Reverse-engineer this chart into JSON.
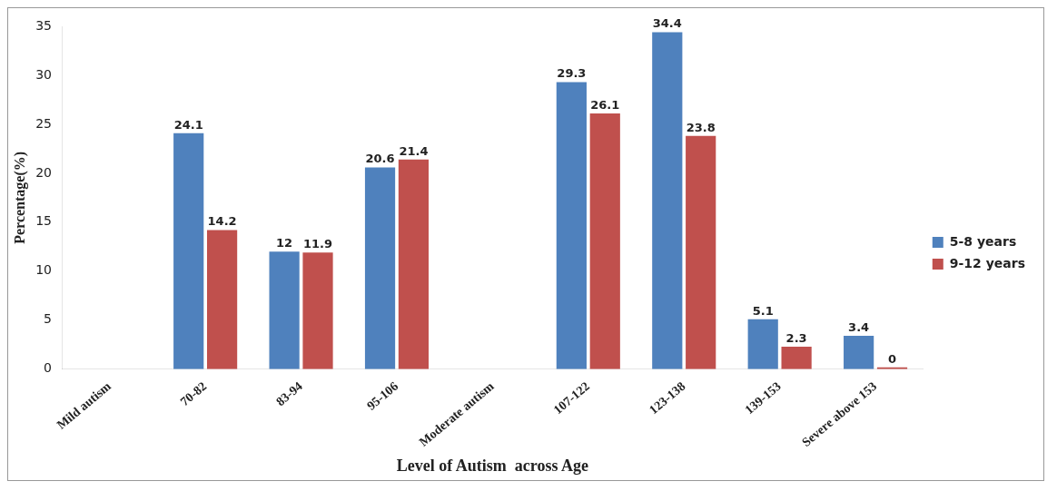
{
  "chart_data": {
    "type": "bar",
    "xlabel": "Level of Autism  across Age",
    "ylabel": "Percentage(%)",
    "categories": [
      "Mild autism",
      "70-82",
      "83-94",
      "95-106",
      "Moderate autism",
      "107-122",
      "123-138",
      "139-153",
      "Severe above 153"
    ],
    "series": [
      {
        "name": "5-8 years",
        "color": "#4f81bd",
        "values": [
          null,
          24.1,
          12,
          20.6,
          null,
          29.3,
          34.4,
          5.1,
          3.4
        ]
      },
      {
        "name": "9-12 years",
        "color": "#c0504d",
        "values": [
          null,
          14.2,
          11.9,
          21.4,
          null,
          26.1,
          23.8,
          2.3,
          0
        ]
      }
    ],
    "ylim": [
      0,
      35
    ],
    "yticks": [
      0,
      5,
      10,
      15,
      20,
      25,
      30,
      35
    ],
    "grid": false,
    "legend": "right",
    "data_labels": true
  }
}
